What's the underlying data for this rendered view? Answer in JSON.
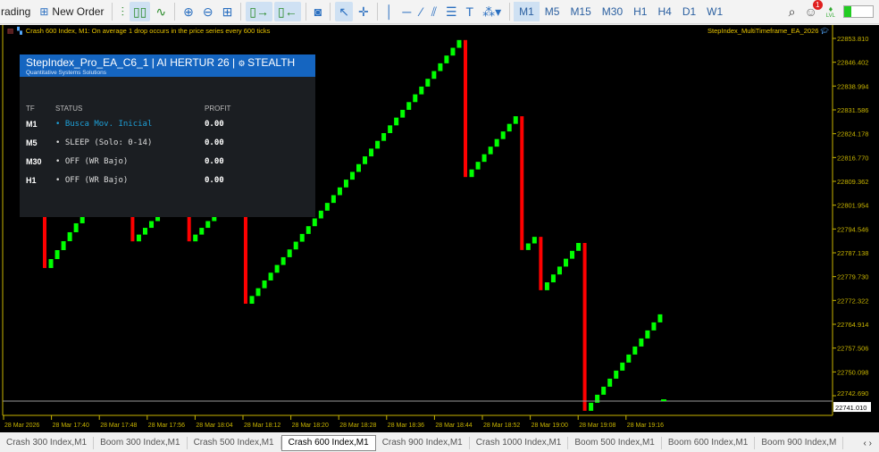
{
  "toolbar": {
    "algo_trading_label": "rading",
    "new_order_label": "New Order",
    "timeframes": [
      "M1",
      "M5",
      "M15",
      "M30",
      "H1",
      "H4",
      "D1",
      "W1"
    ],
    "active_timeframe": "M1",
    "notification_count": "1",
    "lvl_label": "LVL"
  },
  "chart": {
    "info_text": "Crash 600 Index, M1:  On average 1 drop occurs in the price series every 600 ticks",
    "ea_name": "StepIndex_MultiTimeframe_EA_2026",
    "price_ticks": [
      "22853.810",
      "22846.402",
      "22838.994",
      "22831.586",
      "22824.178",
      "22816.770",
      "22809.362",
      "22801.954",
      "22794.546",
      "22787.138",
      "22779.730",
      "22772.322",
      "22764.914",
      "22757.506",
      "22750.098",
      "22742.690"
    ],
    "current_price": "22741.010",
    "time_ticks": [
      "28 Mar 2026",
      "28 Mar 17:40",
      "28 Mar 17:48",
      "28 Mar 17:56",
      "28 Mar 18:04",
      "28 Mar 18:12",
      "28 Mar 18:20",
      "28 Mar 18:28",
      "28 Mar 18:36",
      "28 Mar 18:44",
      "28 Mar 18:52",
      "28 Mar 19:00",
      "28 Mar 19:08",
      "28 Mar 19:16"
    ],
    "colors": {
      "up": "#00ff00",
      "down": "#ff0000",
      "axis": "#c8b400",
      "background": "#000000"
    },
    "price_path": [
      {
        "dir": "down",
        "to": 22782.4,
        "n": 1
      },
      {
        "dir": "up",
        "to": 22799.1,
        "n": 6
      },
      {
        "dir": "up",
        "to": 22805.0,
        "n": 7
      },
      {
        "dir": "down",
        "to": 22790.7,
        "n": 1
      },
      {
        "dir": "up",
        "to": 22799.1,
        "n": 4
      },
      {
        "dir": "up",
        "to": 22803.0,
        "n": 4
      },
      {
        "dir": "down",
        "to": 22790.7,
        "n": 1
      },
      {
        "dir": "up",
        "to": 22799.1,
        "n": 4
      },
      {
        "dir": "up",
        "to": 22803.0,
        "n": 4
      },
      {
        "dir": "down",
        "to": 22771.3,
        "n": 1
      },
      {
        "dir": "up",
        "to": 22853.3,
        "n": 34
      },
      {
        "dir": "down",
        "to": 22810.7,
        "n": 1
      },
      {
        "dir": "up",
        "to": 22829.6,
        "n": 8
      },
      {
        "dir": "down",
        "to": 22788.0,
        "n": 1
      },
      {
        "dir": "up",
        "to": 22792.1,
        "n": 2
      },
      {
        "dir": "down",
        "to": 22775.5,
        "n": 1
      },
      {
        "dir": "up",
        "to": 22790.2,
        "n": 6
      },
      {
        "dir": "down",
        "to": 22738.0,
        "n": 1
      },
      {
        "dir": "up",
        "to": 22768.0,
        "n": 12
      }
    ],
    "start_price": 22799.1
  },
  "panel": {
    "title": "StepIndex_Pro_EA_C6_1 | AI HERTUR 26 | ",
    "stealth": "STEALTH",
    "subtitle": "Quantitative Systems Solutions",
    "headers": {
      "tf": "TF",
      "status": "STATUS",
      "profit": "PROFIT"
    },
    "rows": [
      {
        "tf": "M1",
        "status": "• Busca Mov. Inicial",
        "profit": "0.00",
        "color": "#1ea0d8"
      },
      {
        "tf": "M5",
        "status": "• SLEEP (Solo: 0-14)",
        "profit": "0.00",
        "color": "#dddddd"
      },
      {
        "tf": "M30",
        "status": "• OFF (WR Bajo)",
        "profit": "0.00",
        "color": "#dddddd"
      },
      {
        "tf": "H1",
        "status": "• OFF (WR Bajo)",
        "profit": "0.00",
        "color": "#dddddd"
      }
    ]
  },
  "tabs": [
    "Crash 300 Index,M1",
    "Boom 300 Index,M1",
    "Crash 500 Index,M1",
    "Crash 600 Index,M1",
    "Crash 900 Index,M1",
    "Crash 1000 Index,M1",
    "Boom 500 Index,M1",
    "Boom 600 Index,M1",
    "Boom 900 Index,M"
  ],
  "active_tab": "Crash 600 Index,M1"
}
